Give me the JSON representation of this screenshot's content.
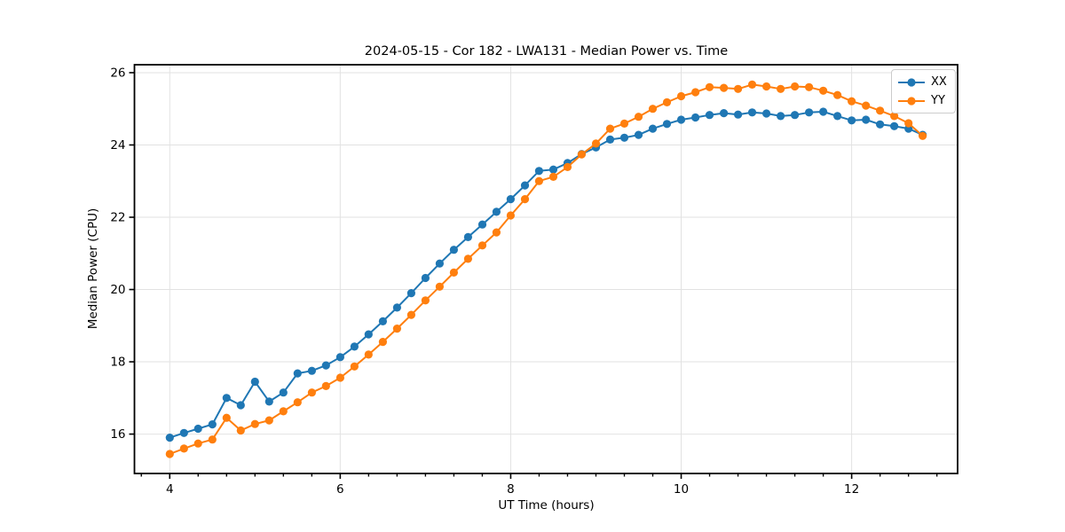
{
  "title": "2024-05-15 - Cor 182 - LWA131 - Median Power vs. Time",
  "legend": {
    "position": "upper right",
    "entries": [
      "XX",
      "YY"
    ]
  },
  "colors": {
    "xx_blue": "#1f77b4",
    "yy_orange": "#ff7f0e",
    "grid": "#e2e2e2",
    "spine": "#000000"
  },
  "chart_data": {
    "type": "line",
    "title": "2024-05-15 - Cor 182 - LWA131 - Median Power vs. Time",
    "xlabel": "UT Time (hours)",
    "ylabel": "Median Power (CPU)",
    "xlim": [
      3.586,
      13.243
    ],
    "ylim": [
      14.91,
      26.22
    ],
    "xticks": [
      4,
      6,
      8,
      10,
      12
    ],
    "yticks": [
      16,
      18,
      20,
      22,
      24,
      26
    ],
    "x_minor_step": 0.3333,
    "grid": true,
    "legend_position": "upper right",
    "marker": "o",
    "x": [
      4.0,
      4.167,
      4.333,
      4.5,
      4.667,
      4.833,
      5.0,
      5.167,
      5.333,
      5.5,
      5.667,
      5.833,
      6.0,
      6.167,
      6.333,
      6.5,
      6.667,
      6.833,
      7.0,
      7.167,
      7.333,
      7.5,
      7.667,
      7.833,
      8.0,
      8.167,
      8.333,
      8.5,
      8.667,
      8.833,
      9.0,
      9.167,
      9.333,
      9.5,
      9.667,
      9.833,
      10.0,
      10.167,
      10.333,
      10.5,
      10.667,
      10.833,
      11.0,
      11.167,
      11.333,
      11.5,
      11.667,
      11.833,
      12.0,
      12.167,
      12.333,
      12.5,
      12.667,
      12.833
    ],
    "series": [
      {
        "name": "XX",
        "color": "#1f77b4",
        "values": [
          15.9,
          16.03,
          16.15,
          16.27,
          17.0,
          16.8,
          17.45,
          16.9,
          17.15,
          17.68,
          17.75,
          17.9,
          18.13,
          18.42,
          18.76,
          19.12,
          19.5,
          19.9,
          20.32,
          20.72,
          21.1,
          21.45,
          21.8,
          22.15,
          22.5,
          22.88,
          23.28,
          23.32,
          23.5,
          23.75,
          23.93,
          24.15,
          24.2,
          24.28,
          24.45,
          24.58,
          24.7,
          24.76,
          24.83,
          24.88,
          24.84,
          24.9,
          24.87,
          24.8,
          24.83,
          24.9,
          24.92,
          24.8,
          24.68,
          24.7,
          24.57,
          24.52,
          24.45,
          24.28
        ]
      },
      {
        "name": "YY",
        "color": "#ff7f0e",
        "values": [
          15.45,
          15.6,
          15.74,
          15.85,
          16.45,
          16.1,
          16.28,
          16.38,
          16.63,
          16.88,
          17.15,
          17.33,
          17.56,
          17.87,
          18.2,
          18.55,
          18.92,
          19.3,
          19.7,
          20.08,
          20.47,
          20.85,
          21.22,
          21.58,
          22.05,
          22.5,
          23.0,
          23.12,
          23.39,
          23.74,
          24.04,
          24.45,
          24.59,
          24.78,
          25.0,
          25.18,
          25.35,
          25.46,
          25.6,
          25.58,
          25.55,
          25.67,
          25.62,
          25.55,
          25.62,
          25.6,
          25.5,
          25.38,
          25.21,
          25.09,
          24.95,
          24.8,
          24.6,
          24.25
        ]
      }
    ]
  }
}
